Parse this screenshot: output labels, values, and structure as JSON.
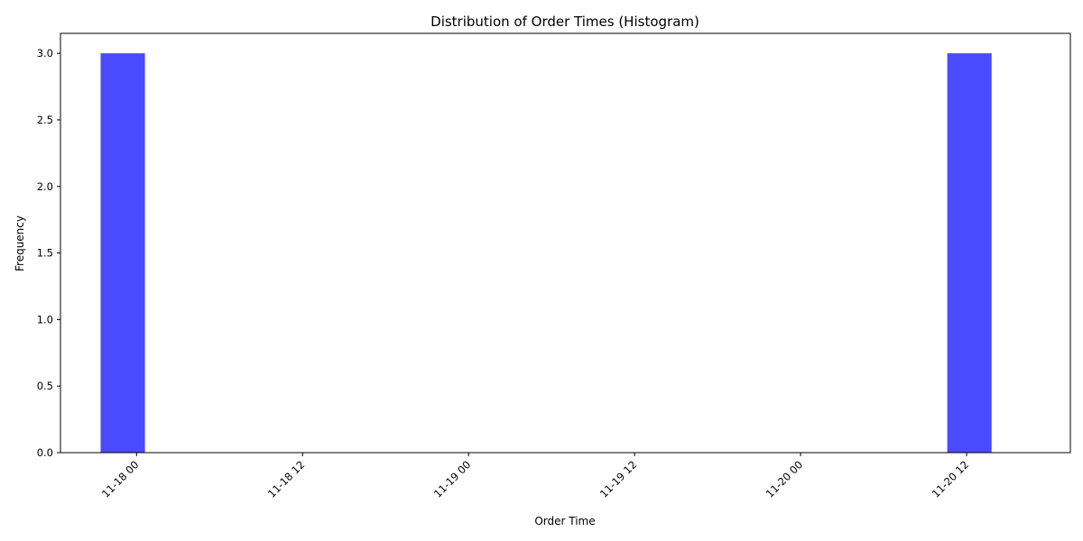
{
  "chart_data": {
    "type": "bar",
    "title": "Distribution of Order Times (Histogram)",
    "xlabel": "Order Time",
    "ylabel": "Frequency",
    "x_ticks": [
      {
        "label": "11-18 00",
        "hours": 0
      },
      {
        "label": "11-18 12",
        "hours": 12
      },
      {
        "label": "11-19 00",
        "hours": 24
      },
      {
        "label": "11-19 12",
        "hours": 36
      },
      {
        "label": "11-20 00",
        "hours": 48
      },
      {
        "label": "11-20 12",
        "hours": 60
      }
    ],
    "y_ticks": [
      {
        "label": "0.0",
        "value": 0
      },
      {
        "label": "0.5",
        "value": 0.5
      },
      {
        "label": "1.0",
        "value": 1.0
      },
      {
        "label": "1.5",
        "value": 1.5
      },
      {
        "label": "2.0",
        "value": 2.0
      },
      {
        "label": "2.5",
        "value": 2.5
      },
      {
        "label": "3.0",
        "value": 3.0
      }
    ],
    "xlim_hours": [
      -5.5,
      67.5
    ],
    "ylim": [
      0,
      3.15
    ],
    "bars": [
      {
        "start_hours": -2.6,
        "end_hours": 0.6,
        "count": 3
      },
      {
        "start_hours": 58.6,
        "end_hours": 61.8,
        "count": 3
      }
    ],
    "bar_color": "#4a4aff",
    "grid": false,
    "legend": "none"
  }
}
